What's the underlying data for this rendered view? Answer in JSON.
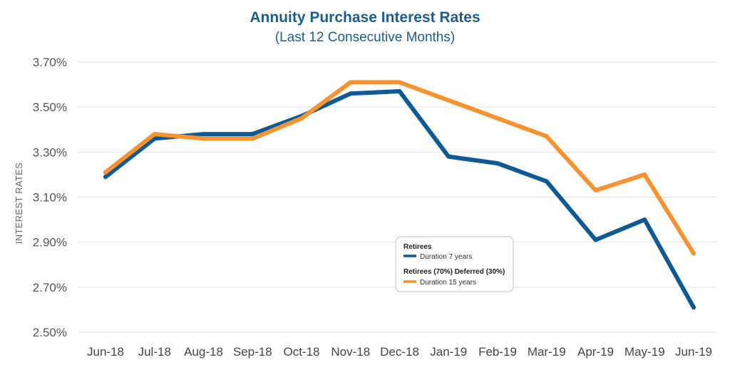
{
  "chart_data": {
    "type": "line",
    "title": "Annuity Purchase Interest Rates",
    "subtitle": "(Last 12 Consecutive Months)",
    "xlabel": "",
    "ylabel": "INTEREST RATES",
    "categories": [
      "Jun-18",
      "Jul-18",
      "Aug-18",
      "Sep-18",
      "Oct-18",
      "Nov-18",
      "Dec-18",
      "Jan-19",
      "Feb-19",
      "Mar-19",
      "Apr-19",
      "May-19",
      "Jun-19"
    ],
    "ylim": [
      2.5,
      3.7
    ],
    "yticks": [
      3.7,
      3.5,
      3.3,
      3.1,
      2.9,
      2.7,
      2.5
    ],
    "ytick_labels": [
      "3.70%",
      "3.50%",
      "3.30%",
      "3.10%",
      "2.90%",
      "2.70%",
      "2.50%"
    ],
    "grid": true,
    "legend_position": "center-bottom",
    "series": [
      {
        "name": "Duration 7 years",
        "group": "Retirees",
        "color": "#0d5a96",
        "values": [
          3.19,
          3.36,
          3.38,
          3.38,
          3.46,
          3.56,
          3.57,
          3.28,
          3.25,
          3.17,
          2.91,
          3.0,
          2.61
        ]
      },
      {
        "name": "Duration 15 years",
        "group": "Retirees (70%) Deferred (30%)",
        "color": "#f7922e",
        "values": [
          3.21,
          3.38,
          3.36,
          3.36,
          3.45,
          3.61,
          3.61,
          3.53,
          3.45,
          3.37,
          3.13,
          3.2,
          2.85
        ]
      }
    ]
  }
}
